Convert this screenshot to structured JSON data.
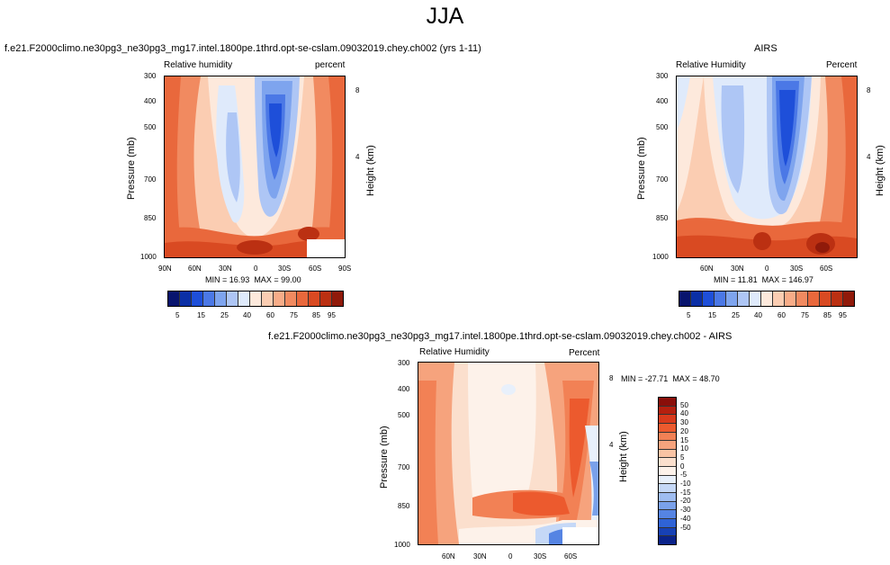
{
  "title": "JJA",
  "colors": {
    "abs_scale": [
      "#08146e",
      "#0b2fa6",
      "#1e4fd9",
      "#4b78e6",
      "#7ea4ee",
      "#aec6f5",
      "#dfeafb",
      "#fde9dc",
      "#fbcdb2",
      "#f7ac88",
      "#f18a60",
      "#e9683c",
      "#d94a22",
      "#bb3012",
      "#901a0a"
    ],
    "diff_scale": [
      "#8a0f0a",
      "#b5200f",
      "#d83a1c",
      "#ec5a2e",
      "#f28155",
      "#f6a37d",
      "#f9c3a4",
      "#fbdfcd",
      "#fdf2ea",
      "#e8f0fb",
      "#c5d8f7",
      "#9fbdf1",
      "#7aa1ea",
      "#5584e3",
      "#2f63d6",
      "#1741b5",
      "#0a238a"
    ]
  },
  "panels": {
    "top_left": {
      "title": "f.e21.F2000climo.ne30pg3_ne30pg3_mg17.intel.1800pe.1thrd.opt-se-cslam.09032019.chey.ch002 (yrs 1-11)",
      "left_label": "Relative humidity",
      "right_label": "percent",
      "y_label": "Pressure (mb)",
      "y2_label": "Height (km)",
      "y_ticks": [
        "300",
        "400",
        "500",
        "700",
        "850",
        "1000"
      ],
      "y2_ticks": [
        "8",
        "4"
      ],
      "x_ticks": [
        "90N",
        "60N",
        "30N",
        "0",
        "30S",
        "60S",
        "90S"
      ],
      "min_label": "MIN = ",
      "min": "16.93",
      "max_label": "MAX = ",
      "max": "99.00",
      "colorbar_labels": [
        "5",
        "15",
        "25",
        "40",
        "60",
        "75",
        "85",
        "95"
      ]
    },
    "top_right": {
      "title": "AIRS",
      "left_label": "Relative Humidity",
      "right_label": "Percent",
      "y_label": "Pressure (mb)",
      "y2_label": "Height (km)",
      "y_ticks": [
        "300",
        "400",
        "500",
        "700",
        "850",
        "1000"
      ],
      "y2_ticks": [
        "8",
        "4"
      ],
      "x_ticks": [
        "60N",
        "30N",
        "0",
        "30S",
        "60S"
      ],
      "min_label": "MIN = ",
      "min": "11.81",
      "max_label": "MAX = ",
      "max": "146.97",
      "colorbar_labels": [
        "5",
        "15",
        "25",
        "40",
        "60",
        "75",
        "85",
        "95"
      ]
    },
    "bottom": {
      "title": "f.e21.F2000climo.ne30pg3_ne30pg3_mg17.intel.1800pe.1thrd.opt-se-cslam.09032019.chey.ch002 - AIRS",
      "left_label": "Relative Humidity",
      "right_label": "Percent",
      "y_label": "Pressure (mb)",
      "y2_label": "Height (km)",
      "y_ticks": [
        "300",
        "400",
        "500",
        "700",
        "850",
        "1000"
      ],
      "y2_ticks": [
        "8",
        "4"
      ],
      "x_ticks": [
        "60N",
        "30N",
        "0",
        "30S",
        "60S"
      ],
      "min_label": "MIN = ",
      "min": "-27.71",
      "max_label": "MAX = ",
      "max": "48.70",
      "colorbar_labels": [
        "50",
        "40",
        "30",
        "20",
        "15",
        "10",
        "5",
        "0",
        "-5",
        "-10",
        "-15",
        "-20",
        "-30",
        "-40",
        "-50"
      ]
    }
  },
  "chart_data": [
    {
      "type": "heatmap",
      "title": "f.e21.F2000climo.ne30pg3_ne30pg3_mg17.intel.1800pe.1thrd.opt-se-cslam.09032019.chey.ch002 (yrs 1-11)",
      "xlabel": "",
      "ylabel": "Pressure (mb)",
      "y2label": "Height (km)",
      "x_ticks": [
        "90N",
        "60N",
        "30N",
        "0",
        "30S",
        "60S",
        "90S"
      ],
      "y_ticks": [
        300,
        400,
        500,
        700,
        850,
        1000
      ],
      "y_scale": "log",
      "ylim": [
        1000,
        300
      ],
      "levels": [
        5,
        10,
        15,
        20,
        25,
        30,
        40,
        50,
        60,
        70,
        75,
        80,
        85,
        90,
        95
      ],
      "min": 16.93,
      "max": 99.0,
      "units": "percent"
    },
    {
      "type": "heatmap",
      "title": "AIRS",
      "xlabel": "",
      "ylabel": "Pressure (mb)",
      "y2label": "Height (km)",
      "x_ticks": [
        "60N",
        "30N",
        "0",
        "30S",
        "60S"
      ],
      "y_ticks": [
        300,
        400,
        500,
        700,
        850,
        1000
      ],
      "y_scale": "log",
      "ylim": [
        1000,
        300
      ],
      "levels": [
        5,
        10,
        15,
        20,
        25,
        30,
        40,
        50,
        60,
        70,
        75,
        80,
        85,
        90,
        95
      ],
      "min": 11.81,
      "max": 146.97,
      "units": "Percent"
    },
    {
      "type": "heatmap",
      "title": "f.e21.F2000climo.ne30pg3_ne30pg3_mg17.intel.1800pe.1thrd.opt-se-cslam.09032019.chey.ch002 - AIRS",
      "xlabel": "",
      "ylabel": "Pressure (mb)",
      "y2label": "Height (km)",
      "x_ticks": [
        "60N",
        "30N",
        "0",
        "30S",
        "60S"
      ],
      "y_ticks": [
        300,
        400,
        500,
        700,
        850,
        1000
      ],
      "y_scale": "log",
      "ylim": [
        1000,
        300
      ],
      "levels": [
        -50,
        -40,
        -30,
        -20,
        -15,
        -10,
        -5,
        0,
        5,
        10,
        15,
        20,
        30,
        40,
        50
      ],
      "min": -27.71,
      "max": 48.7,
      "units": "Percent"
    }
  ]
}
